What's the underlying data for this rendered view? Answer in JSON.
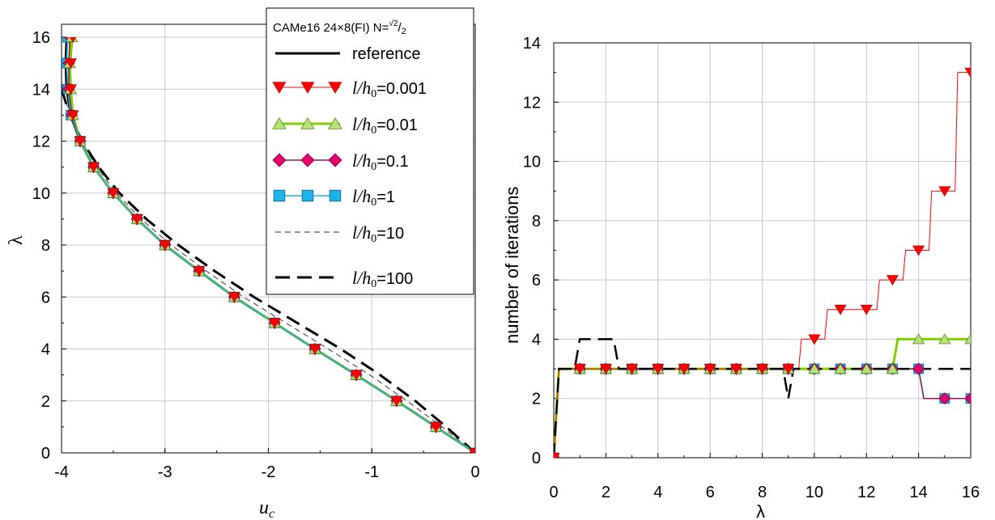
{
  "chart_data": [
    {
      "type": "line",
      "xlabel_main": "u",
      "xlabel_sub": "c",
      "ylabel": "λ",
      "xlim": [
        -4,
        0
      ],
      "ylim": [
        0,
        16
      ],
      "xticks": [
        -4,
        -3,
        -2,
        -1,
        0
      ],
      "yticks": [
        0,
        2,
        4,
        6,
        8,
        10,
        12,
        14,
        16
      ],
      "grid": true,
      "legend": {
        "title": "CAMe16 24×8(FI) N=",
        "title_sqrt": "2",
        "title_den": "2",
        "position": "top-right",
        "entries": [
          {
            "prefix": "",
            "value": "reference"
          },
          {
            "prefix": "l/h0=",
            "value": "0.001"
          },
          {
            "prefix": "l/h0=",
            "value": "0.01"
          },
          {
            "prefix": "l/h0=",
            "value": "0.1"
          },
          {
            "prefix": "l/h0=",
            "value": "1"
          },
          {
            "prefix": "l/h0=",
            "value": "10"
          },
          {
            "prefix": "l/h0=",
            "value": "100"
          }
        ],
        "legend_symbol": {
          "l": "l",
          "h": "h",
          "zero": "0",
          "eq": "="
        }
      },
      "colors": {
        "red": "#ff0000",
        "green": "#80d000",
        "magenta": "#e6006e",
        "cyan": "#1fb4e8",
        "black": "#000000",
        "gray": "#555555"
      },
      "series": [
        {
          "key": "reference",
          "style": "solid-black",
          "x": [
            0,
            -0.38,
            -0.76,
            -1.15,
            -1.55,
            -1.94,
            -2.33,
            -2.67,
            -3.0,
            -3.27,
            -3.5,
            -3.69,
            -3.82,
            -3.91,
            -3.95,
            -3.96,
            -3.95
          ],
          "y": [
            0,
            1,
            2,
            3,
            4,
            5,
            6,
            7,
            8,
            9,
            10,
            11,
            12,
            13,
            14,
            15,
            16
          ]
        },
        {
          "key": "0.001",
          "style": "red-tri-down",
          "x": [
            0,
            -0.38,
            -0.76,
            -1.15,
            -1.55,
            -1.94,
            -2.33,
            -2.67,
            -3.0,
            -3.27,
            -3.5,
            -3.69,
            -3.82,
            -3.89,
            -3.91,
            -3.91,
            -3.89
          ],
          "y": [
            0,
            1,
            2,
            3,
            4,
            5,
            6,
            7,
            8,
            9,
            10,
            11,
            12,
            13,
            14,
            15,
            16
          ]
        },
        {
          "key": "0.01",
          "style": "green-tri-up",
          "x": [
            0,
            -0.38,
            -0.76,
            -1.15,
            -1.55,
            -1.94,
            -2.33,
            -2.67,
            -3.0,
            -3.27,
            -3.5,
            -3.69,
            -3.82,
            -3.89,
            -3.91,
            -3.92,
            -3.9
          ],
          "y": [
            0,
            1,
            2,
            3,
            4,
            5,
            6,
            7,
            8,
            9,
            10,
            11,
            12,
            13,
            14,
            15,
            16
          ]
        },
        {
          "key": "0.1",
          "style": "magenta-diamond",
          "x": [
            0,
            -0.38,
            -0.76,
            -1.15,
            -1.55,
            -1.94,
            -2.33,
            -2.67,
            -3.0,
            -3.27,
            -3.5,
            -3.69,
            -3.82,
            -3.9,
            -3.93,
            -3.93,
            -3.92
          ],
          "y": [
            0,
            1,
            2,
            3,
            4,
            5,
            6,
            7,
            8,
            9,
            10,
            11,
            12,
            13,
            14,
            15,
            16
          ]
        },
        {
          "key": "1",
          "style": "cyan-square",
          "x": [
            0,
            -0.38,
            -0.76,
            -1.15,
            -1.55,
            -1.94,
            -2.33,
            -2.67,
            -3.0,
            -3.27,
            -3.5,
            -3.69,
            -3.82,
            -3.91,
            -3.94,
            -3.95,
            -3.94
          ],
          "y": [
            0,
            1,
            2,
            3,
            4,
            5,
            6,
            7,
            8,
            9,
            10,
            11,
            12,
            13,
            14,
            15,
            16
          ]
        },
        {
          "key": "10",
          "style": "thin-dash",
          "x": [
            0,
            -0.32,
            -0.66,
            -1.02,
            -1.42,
            -1.83,
            -2.24,
            -2.6,
            -2.94,
            -3.23,
            -3.47,
            -3.66,
            -3.81,
            -3.92,
            -3.99,
            -4.02,
            -4.03
          ],
          "y": [
            0,
            1,
            2,
            3,
            4,
            5,
            6,
            7,
            8,
            9,
            10,
            11,
            12,
            13,
            14,
            15,
            15.5
          ]
        },
        {
          "key": "100",
          "style": "thick-dash",
          "x": [
            0,
            -0.28,
            -0.58,
            -0.92,
            -1.3,
            -1.72,
            -2.14,
            -2.52,
            -2.87,
            -3.18,
            -3.44,
            -3.64,
            -3.8,
            -3.92,
            -4.0,
            -4.05,
            -4.06
          ],
          "y": [
            0,
            1,
            2,
            3,
            4,
            5,
            6,
            7,
            8,
            9,
            10,
            11,
            12,
            13,
            14,
            15,
            15.3
          ]
        }
      ]
    },
    {
      "type": "line",
      "xlabel": "λ",
      "ylabel": "number of iterations",
      "xlim": [
        0,
        16
      ],
      "ylim": [
        0,
        14
      ],
      "xticks": [
        0,
        2,
        4,
        6,
        8,
        10,
        12,
        14,
        16
      ],
      "yticks": [
        0,
        2,
        4,
        6,
        8,
        10,
        12,
        14
      ],
      "grid": true,
      "series": [
        {
          "key": "0.001",
          "style": "red-tri-down-step",
          "x": [
            0,
            1,
            2,
            3,
            4,
            5,
            6,
            7,
            8,
            9,
            10,
            11,
            12,
            13,
            14,
            15,
            16
          ],
          "y": [
            0,
            3,
            3,
            3,
            3,
            3,
            3,
            3,
            3,
            3,
            4,
            5,
            5,
            6,
            7,
            9,
            13
          ]
        },
        {
          "key": "0.01",
          "style": "green-tri-up",
          "x": [
            0,
            1,
            2,
            3,
            4,
            5,
            6,
            7,
            8,
            9,
            10,
            11,
            12,
            13,
            14,
            15,
            16
          ],
          "y": [
            0,
            3,
            3,
            3,
            3,
            3,
            3,
            3,
            3,
            3,
            3,
            3,
            3,
            3,
            4,
            4,
            4
          ]
        },
        {
          "key": "0.1",
          "style": "magenta-diamond",
          "x": [
            0,
            1,
            2,
            3,
            4,
            5,
            6,
            7,
            8,
            9,
            10,
            11,
            12,
            13,
            14,
            15,
            16
          ],
          "y": [
            0,
            3,
            3,
            3,
            3,
            3,
            3,
            3,
            3,
            3,
            3,
            3,
            3,
            3,
            3,
            2,
            2
          ]
        },
        {
          "key": "1",
          "style": "cyan-square",
          "x": [
            0,
            1,
            2,
            3,
            4,
            5,
            6,
            7,
            8,
            9,
            10,
            11,
            12,
            13,
            14,
            15,
            16
          ],
          "y": [
            0,
            3,
            3,
            3,
            3,
            3,
            3,
            3,
            3,
            3,
            3,
            3,
            3,
            3,
            3,
            2,
            2
          ]
        },
        {
          "key": "100",
          "style": "thick-dash",
          "x": [
            0,
            0.2,
            0.8,
            1.0,
            2.3,
            2.5,
            8.8,
            9.0,
            9.2,
            16
          ],
          "y": [
            0,
            3,
            3,
            4,
            4,
            3,
            3,
            2,
            3,
            3
          ]
        }
      ]
    }
  ]
}
